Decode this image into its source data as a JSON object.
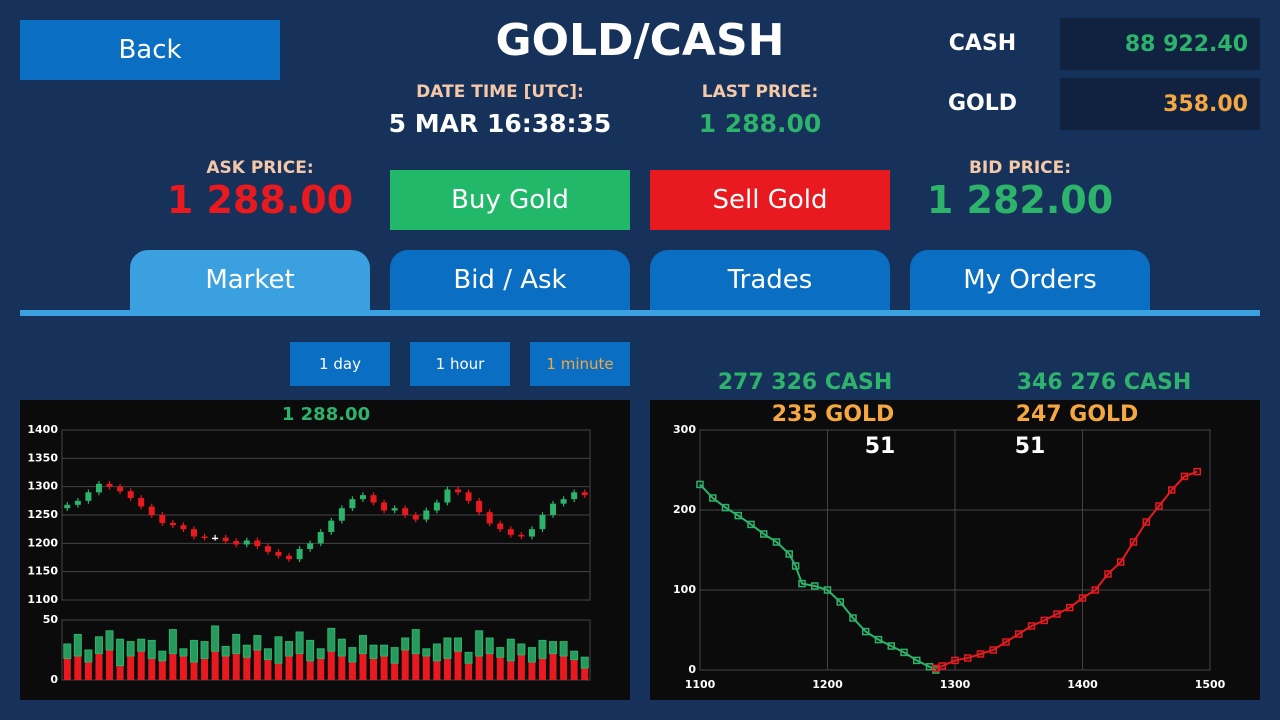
{
  "header": {
    "back": "Back",
    "title": "GOLD/CASH",
    "cash_label": "CASH",
    "cash_value": "88 922.40",
    "gold_label": "GOLD",
    "gold_value": "358.00",
    "datetime_label": "DATE TIME [UTC]:",
    "datetime": "5 MAR 16:38:35",
    "last_price_label": "LAST PRICE:",
    "last_price": "1 288.00",
    "ask_label": "ASK PRICE:",
    "ask_price": "1 288.00",
    "bid_label": "BID PRICE:",
    "bid_price": "1 282.00",
    "buy": "Buy Gold",
    "sell": "Sell Gold"
  },
  "tabs": [
    "Market",
    "Bid / Ask",
    "Trades",
    "My Orders"
  ],
  "intervals": [
    "1 day",
    "1 hour",
    "1 minute"
  ],
  "chart_data": [
    {
      "type": "candlestick",
      "title": "1 288.00",
      "up_color": "#2db36b",
      "down_color": "#e8191f",
      "doji_color": "#ffffff",
      "ylim": [
        1100,
        1400
      ],
      "yticks": [
        1100,
        1150,
        1200,
        1250,
        1300,
        1350,
        1400
      ],
      "grid": true,
      "open": [
        1262,
        1268,
        1275,
        1290,
        1305,
        1300,
        1292,
        1280,
        1265,
        1250,
        1236,
        1232,
        1225,
        1212,
        1210,
        1210,
        1204,
        1198,
        1205,
        1195,
        1185,
        1178,
        1172,
        1190,
        1200,
        1220,
        1240,
        1262,
        1278,
        1285,
        1272,
        1258,
        1262,
        1250,
        1242,
        1258,
        1272,
        1295,
        1290,
        1275,
        1255,
        1235,
        1225,
        1215,
        1212,
        1225,
        1250,
        1270,
        1278,
        1290
      ],
      "high": [
        1273,
        1280,
        1295,
        1310,
        1310,
        1305,
        1297,
        1285,
        1270,
        1255,
        1241,
        1237,
        1230,
        1217,
        1215,
        1215,
        1209,
        1210,
        1210,
        1200,
        1190,
        1183,
        1195,
        1205,
        1225,
        1245,
        1267,
        1283,
        1290,
        1290,
        1277,
        1267,
        1267,
        1255,
        1263,
        1277,
        1300,
        1300,
        1295,
        1280,
        1260,
        1240,
        1230,
        1220,
        1230,
        1255,
        1275,
        1283,
        1295,
        1295
      ],
      "low": [
        1257,
        1263,
        1270,
        1285,
        1295,
        1287,
        1275,
        1260,
        1245,
        1231,
        1227,
        1220,
        1207,
        1205,
        1205,
        1199,
        1193,
        1193,
        1190,
        1180,
        1173,
        1167,
        1167,
        1185,
        1195,
        1215,
        1235,
        1257,
        1273,
        1267,
        1253,
        1253,
        1245,
        1237,
        1237,
        1253,
        1267,
        1285,
        1270,
        1250,
        1230,
        1220,
        1210,
        1207,
        1207,
        1220,
        1245,
        1265,
        1273,
        1280
      ],
      "close": [
        1268,
        1275,
        1290,
        1305,
        1300,
        1292,
        1280,
        1265,
        1250,
        1236,
        1232,
        1225,
        1212,
        1210,
        1210,
        1204,
        1198,
        1205,
        1195,
        1185,
        1178,
        1172,
        1190,
        1200,
        1220,
        1240,
        1262,
        1278,
        1285,
        1272,
        1258,
        1262,
        1250,
        1242,
        1258,
        1272,
        1295,
        1290,
        1275,
        1255,
        1235,
        1225,
        1215,
        1212,
        1225,
        1250,
        1270,
        1278,
        1290,
        1285
      ]
    },
    {
      "type": "stacked-bar",
      "ylim": [
        0,
        50
      ],
      "yticks": [
        0,
        50
      ],
      "grid": false,
      "series": [
        {
          "color": "#e8191f",
          "values": [
            18,
            20,
            15,
            22,
            25,
            12,
            20,
            24,
            18,
            16,
            22,
            20,
            15,
            18,
            24,
            20,
            22,
            19,
            25,
            17,
            14,
            20,
            22,
            16,
            18,
            24,
            20,
            15,
            22,
            18,
            20,
            14,
            25,
            22,
            20,
            16,
            18,
            24,
            14,
            20,
            22,
            19,
            16,
            21,
            15,
            18,
            22,
            20,
            17,
            10
          ]
        },
        {
          "color": "#2db36b",
          "values": [
            12,
            18,
            10,
            14,
            16,
            22,
            12,
            10,
            15,
            8,
            20,
            6,
            18,
            14,
            21,
            8,
            16,
            10,
            12,
            9,
            22,
            12,
            18,
            17,
            8,
            19,
            14,
            12,
            15,
            11,
            9,
            13,
            10,
            20,
            6,
            14,
            17,
            11,
            9,
            21,
            13,
            8,
            18,
            9,
            12,
            15,
            10,
            12,
            7,
            9
          ]
        }
      ]
    },
    {
      "type": "line",
      "xlim": [
        1100,
        1500
      ],
      "xticks": [
        1100,
        1200,
        1300,
        1400,
        1500
      ],
      "ylim": [
        0,
        300
      ],
      "yticks": [
        0,
        100,
        200,
        300
      ],
      "grid": true,
      "annotations": [
        "277 326 CASH",
        "235 GOLD",
        "51",
        "346 276 CASH",
        "247 GOLD",
        "51"
      ],
      "series": [
        {
          "color": "#2db36b",
          "x": [
            1100,
            1110,
            1120,
            1130,
            1140,
            1150,
            1160,
            1170,
            1175,
            1180,
            1190,
            1200,
            1210,
            1220,
            1230,
            1240,
            1250,
            1260,
            1270,
            1280,
            1285
          ],
          "values": [
            232,
            215,
            203,
            193,
            182,
            170,
            160,
            145,
            130,
            108,
            105,
            100,
            85,
            65,
            48,
            38,
            30,
            22,
            12,
            4,
            0
          ]
        },
        {
          "color": "#e8191f",
          "x": [
            1285,
            1290,
            1300,
            1310,
            1320,
            1330,
            1340,
            1350,
            1360,
            1370,
            1380,
            1390,
            1400,
            1410,
            1420,
            1430,
            1440,
            1450,
            1460,
            1470,
            1480,
            1490
          ],
          "values": [
            2,
            5,
            12,
            15,
            20,
            25,
            35,
            45,
            55,
            62,
            70,
            78,
            90,
            100,
            120,
            135,
            160,
            185,
            205,
            225,
            242,
            248
          ]
        }
      ]
    }
  ]
}
